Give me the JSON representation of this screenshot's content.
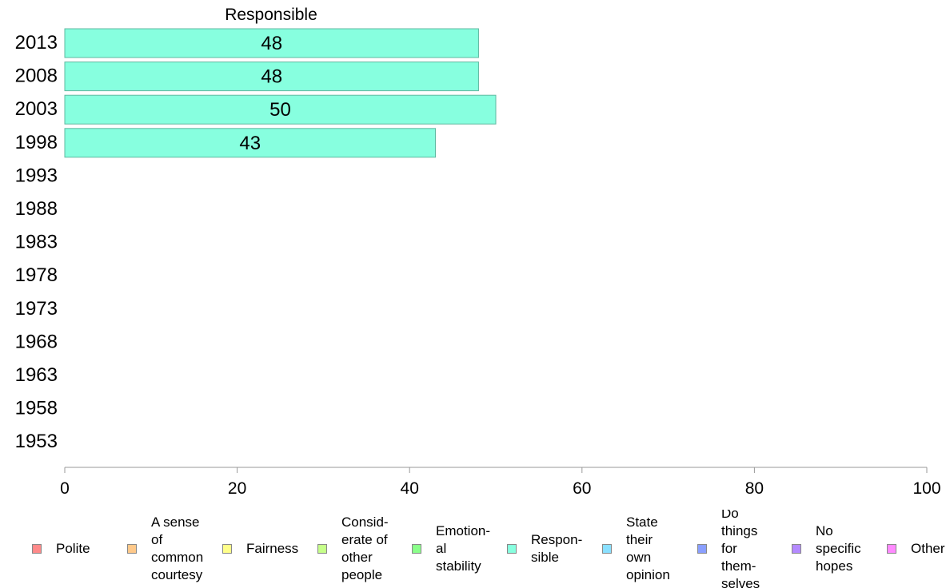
{
  "chart_data": {
    "type": "bar",
    "orientation": "horizontal",
    "title": "Responsible",
    "categories": [
      "2013",
      "2008",
      "2003",
      "1998",
      "1993",
      "1988",
      "1983",
      "1978",
      "1973",
      "1968",
      "1963",
      "1958",
      "1953"
    ],
    "series": [
      {
        "name": "Responsible",
        "color": "#87ffdf",
        "values": [
          48,
          48,
          50,
          43,
          null,
          null,
          null,
          null,
          null,
          null,
          null,
          null,
          null
        ]
      }
    ],
    "data_labels": [
      "48",
      "48",
      "50",
      "43",
      "",
      "",
      "",
      "",
      "",
      "",
      "",
      "",
      ""
    ],
    "xlim": [
      0,
      100
    ],
    "xticks": [
      0,
      20,
      40,
      60,
      80,
      100
    ],
    "grid": false,
    "legend_position": "bottom"
  },
  "legend": {
    "items": [
      {
        "label": "Polite",
        "color": "#ff8a8a"
      },
      {
        "label": "A sense\nof\ncommon\ncourtesy",
        "color": "#ffc98a"
      },
      {
        "label": "Fairness",
        "color": "#ffff8a"
      },
      {
        "label": "Consid-\nerate of\nother\npeople",
        "color": "#c6ff8a"
      },
      {
        "label": "Emotion-\nal\nstability",
        "color": "#8aff8a"
      },
      {
        "label": "Respon-\nsible",
        "color": "#87ffdf"
      },
      {
        "label": "State\ntheir\nown\nopinion",
        "color": "#8ae0ff"
      },
      {
        "label": "Do\nthings\nfor\nthem-\nselves",
        "color": "#8a9fff"
      },
      {
        "label": "No\nspecific\nhopes",
        "color": "#b48aff"
      },
      {
        "label": "Other",
        "color": "#ff8aff"
      }
    ]
  }
}
